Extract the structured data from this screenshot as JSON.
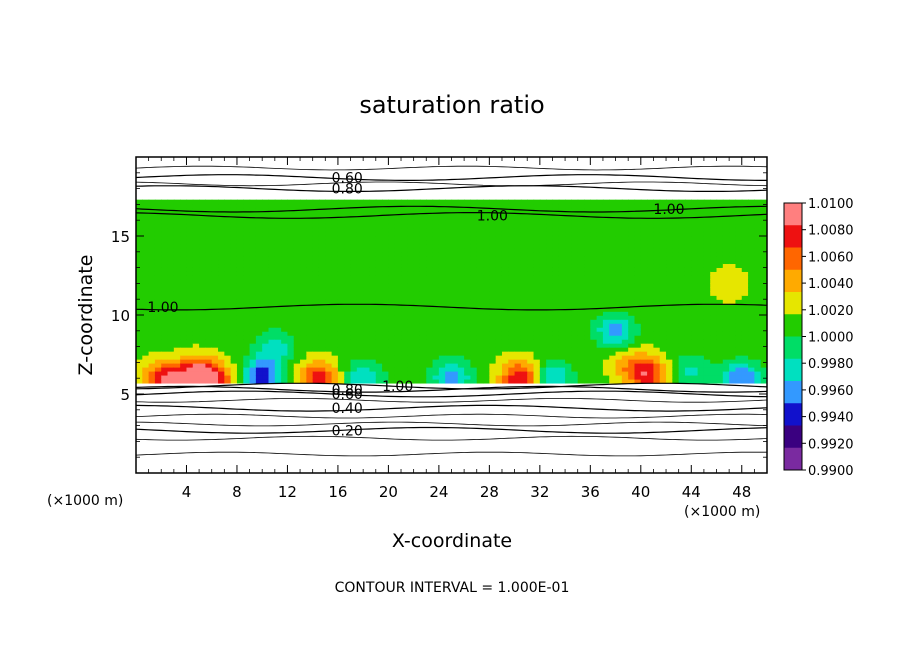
{
  "chart_data": {
    "type": "heatmap",
    "title": "saturation ratio",
    "xlabel": "X-coordinate",
    "ylabel": "Z-coordinate",
    "x_unit_left": "(×1000 m)",
    "x_unit_right": "(×1000 m)",
    "xlim": [
      0,
      50
    ],
    "ylim": [
      0,
      20
    ],
    "x_ticks": [
      4,
      8,
      12,
      16,
      20,
      24,
      28,
      32,
      36,
      40,
      44,
      48
    ],
    "y_ticks": [
      5,
      10,
      15
    ],
    "colorbar": {
      "min": 0.99,
      "max": 1.01,
      "labels": [
        "1.0100",
        "1.0080",
        "1.0060",
        "1.0040",
        "1.0020",
        "1.0000",
        "0.9980",
        "0.9960",
        "0.9940",
        "0.9920",
        "0.9900"
      ],
      "colors": [
        "#ff7f7f",
        "#ee1111",
        "#ff6600",
        "#ffaa00",
        "#e6e600",
        "#22cc00",
        "#00dd66",
        "#00e0c0",
        "#3399ff",
        "#1111cc",
        "#3a0080",
        "#7a2aa0"
      ]
    },
    "field": {
      "cloud_top_z": 17.3,
      "cloud_base_z": 5.7,
      "base_value": 1.0004,
      "features": [
        {
          "x": 2.2,
          "z": 5.9,
          "value": 1.0085
        },
        {
          "x": 4.8,
          "z": 6.2,
          "value": 1.0095
        },
        {
          "x": 6.3,
          "z": 5.9,
          "value": 1.006
        },
        {
          "x": 10.0,
          "z": 6.2,
          "value": 0.9925
        },
        {
          "x": 11.0,
          "z": 8.0,
          "value": 0.9965
        },
        {
          "x": 14.5,
          "z": 6.0,
          "value": 1.0075
        },
        {
          "x": 18.0,
          "z": 6.0,
          "value": 0.9955
        },
        {
          "x": 25.0,
          "z": 6.1,
          "value": 0.9945
        },
        {
          "x": 30.5,
          "z": 6.0,
          "value": 1.0085
        },
        {
          "x": 33.0,
          "z": 6.0,
          "value": 0.995
        },
        {
          "x": 40.5,
          "z": 6.3,
          "value": 1.0075
        },
        {
          "x": 39.0,
          "z": 7.0,
          "value": 1.003
        },
        {
          "x": 38.0,
          "z": 9.0,
          "value": 0.9945
        },
        {
          "x": 44.0,
          "z": 6.5,
          "value": 0.997
        },
        {
          "x": 48.0,
          "z": 6.0,
          "value": 0.9935
        },
        {
          "x": 47.0,
          "z": 12.0,
          "value": 1.002
        }
      ]
    },
    "contours": [
      {
        "label": "0.60",
        "z": 18.7
      },
      {
        "label": "0.80",
        "z": 18.0
      },
      {
        "label": "1.00",
        "z": 16.3
      },
      {
        "label": "1.00",
        "z": 16.7
      },
      {
        "label": "1.00",
        "z": 10.5
      },
      {
        "label": "1.00",
        "z": 5.5
      },
      {
        "label": "0.60",
        "z": 5.0
      },
      {
        "label": "0.80",
        "z": 5.3
      },
      {
        "label": "0.40",
        "z": 4.1
      },
      {
        "label": "0.20",
        "z": 2.7
      }
    ]
  },
  "footer": "CONTOUR INTERVAL = 1.000E-01"
}
